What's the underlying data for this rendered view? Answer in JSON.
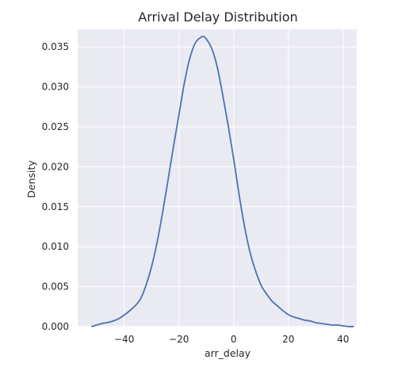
{
  "chart_data": {
    "type": "line",
    "title": "Arrival Delay Distribution",
    "xlabel": "arr_delay",
    "ylabel": "Density",
    "xlim": [
      -57,
      45
    ],
    "ylim": [
      0,
      0.0372
    ],
    "grid": true,
    "legend": "none",
    "x_ticks": [
      -40,
      -20,
      0,
      20,
      40
    ],
    "x_tick_labels": [
      "−40",
      "−20",
      "0",
      "20",
      "40"
    ],
    "y_ticks": [
      0,
      0.005,
      0.01,
      0.015,
      0.02,
      0.025,
      0.03,
      0.035
    ],
    "y_tick_labels": [
      "0.000",
      "0.005",
      "0.010",
      "0.015",
      "0.020",
      "0.025",
      "0.030",
      "0.035"
    ],
    "series": [
      {
        "x": [
          -52,
          -50,
          -48,
          -45,
          -42,
          -39,
          -36,
          -34,
          -32,
          -30,
          -28,
          -26,
          -24,
          -22,
          -20,
          -18,
          -16,
          -14,
          -12,
          -11,
          -10,
          -8,
          -6,
          -4,
          -2,
          0,
          2,
          4,
          6,
          8,
          10,
          12,
          14,
          16,
          18,
          20,
          22,
          24,
          26,
          28,
          30,
          32,
          34,
          36,
          38,
          40,
          42,
          44
        ],
        "y": [
          0.0,
          0.0002,
          0.0004,
          0.0006,
          0.001,
          0.0017,
          0.0026,
          0.0035,
          0.0052,
          0.0075,
          0.0105,
          0.0142,
          0.0183,
          0.0225,
          0.0265,
          0.0305,
          0.0336,
          0.0355,
          0.0362,
          0.0363,
          0.036,
          0.0348,
          0.0325,
          0.029,
          0.0252,
          0.021,
          0.0165,
          0.0125,
          0.0093,
          0.007,
          0.0052,
          0.0041,
          0.0032,
          0.0026,
          0.002,
          0.0015,
          0.0012,
          0.001,
          0.0008,
          0.0007,
          0.0005,
          0.0004,
          0.0003,
          0.0002,
          0.0002,
          0.0001,
          0.0,
          0.0
        ],
        "color": "#4c72b0"
      }
    ],
    "colors": {
      "background": "#eaeaf2",
      "grid": "#ffffff",
      "line": "#4c72b0",
      "text": "#262626"
    }
  }
}
